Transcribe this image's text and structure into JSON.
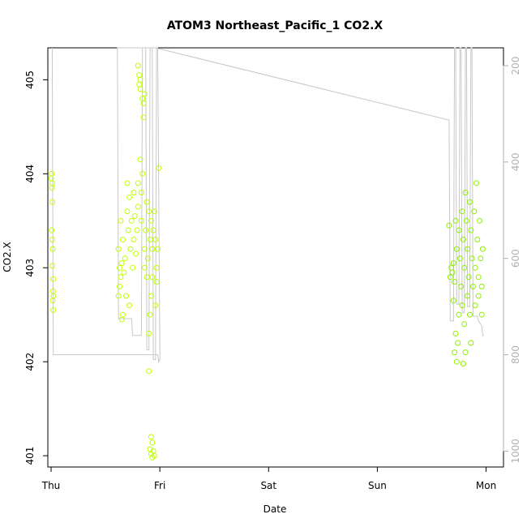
{
  "chart_data": {
    "type": "scatter",
    "title": "ATOM3 Northeast_Pacific_1 CO2.X",
    "xlabel": "Date",
    "ylabel": "CO2.X",
    "x_ticks": [
      "Thu",
      "Fri",
      "Sat",
      "Sun",
      "Mon"
    ],
    "y_ticks": [
      401,
      402,
      403,
      404,
      405
    ],
    "y2_ticks": [
      200,
      400,
      600,
      800,
      1000
    ],
    "xlim": [
      -0.03,
      4.16
    ],
    "ylim": [
      400.88,
      405.34
    ],
    "y2lim": [
      1033,
      163
    ],
    "grid": false,
    "legend": "none",
    "colors": {
      "points_early": "#bfff00",
      "points_late": "#8cf000",
      "profile_line": "#c8c8c8"
    },
    "profile_line": [
      [
        0.01,
        163
      ],
      [
        0.02,
        800
      ],
      [
        0.98,
        800
      ],
      [
        0.99,
        815
      ],
      [
        1.0,
        810
      ],
      [
        0.98,
        163
      ],
      [
        0.97,
        163
      ],
      [
        0.96,
        810
      ],
      [
        0.94,
        810
      ],
      [
        0.93,
        163
      ],
      [
        0.91,
        163
      ],
      [
        0.9,
        790
      ],
      [
        0.88,
        790
      ],
      [
        0.87,
        163
      ],
      [
        0.84,
        163
      ],
      [
        0.83,
        760
      ],
      [
        0.75,
        760
      ],
      [
        0.74,
        725
      ],
      [
        0.62,
        725
      ],
      [
        0.61,
        163
      ],
      [
        0.96,
        163
      ],
      [
        3.66,
        313
      ],
      [
        3.67,
        730
      ],
      [
        3.7,
        730
      ],
      [
        3.71,
        163
      ],
      [
        3.72,
        163
      ],
      [
        3.73,
        695
      ],
      [
        3.75,
        695
      ],
      [
        3.76,
        163
      ],
      [
        3.77,
        163
      ],
      [
        3.78,
        713
      ],
      [
        3.8,
        713
      ],
      [
        3.81,
        163
      ],
      [
        3.82,
        163
      ],
      [
        3.83,
        700
      ],
      [
        3.85,
        700
      ],
      [
        3.86,
        163
      ],
      [
        3.87,
        163
      ],
      [
        3.88,
        720
      ],
      [
        3.92,
        720
      ],
      [
        3.93,
        730
      ],
      [
        3.96,
        740
      ],
      [
        3.97,
        760
      ],
      [
        3.98,
        760
      ]
    ],
    "series": [
      {
        "points": [
          [
            0.0,
            403.95
          ],
          [
            0.005,
            404.0
          ],
          [
            0.01,
            403.9
          ],
          [
            0.008,
            403.85
          ],
          [
            0.012,
            403.7
          ],
          [
            0.004,
            403.4
          ],
          [
            0.01,
            403.3
          ],
          [
            0.015,
            403.2
          ],
          [
            0.012,
            403.02
          ],
          [
            0.02,
            402.88
          ],
          [
            0.018,
            402.75
          ],
          [
            0.022,
            402.7
          ],
          [
            0.015,
            402.65
          ],
          [
            0.02,
            402.55
          ],
          [
            0.62,
            403.2
          ],
          [
            0.63,
            403.0
          ],
          [
            0.64,
            402.9
          ],
          [
            0.62,
            402.7
          ],
          [
            0.63,
            402.8
          ],
          [
            0.65,
            402.45
          ],
          [
            0.66,
            402.5
          ],
          [
            0.64,
            403.5
          ],
          [
            0.66,
            403.3
          ],
          [
            0.68,
            403.1
          ],
          [
            0.65,
            403.05
          ],
          [
            0.67,
            402.95
          ],
          [
            0.69,
            402.7
          ],
          [
            0.7,
            403.6
          ],
          [
            0.71,
            403.4
          ],
          [
            0.72,
            403.75
          ],
          [
            0.7,
            403.9
          ],
          [
            0.73,
            403.2
          ],
          [
            0.74,
            403.5
          ],
          [
            0.75,
            403.0
          ],
          [
            0.72,
            402.6
          ],
          [
            0.76,
            403.3
          ],
          [
            0.77,
            403.55
          ],
          [
            0.78,
            403.15
          ],
          [
            0.76,
            403.8
          ],
          [
            0.79,
            403.4
          ],
          [
            0.8,
            403.65
          ],
          [
            0.8,
            405.15
          ],
          [
            0.81,
            405.05
          ],
          [
            0.81,
            404.95
          ],
          [
            0.82,
            405.0
          ],
          [
            0.82,
            404.9
          ],
          [
            0.8,
            403.9
          ],
          [
            0.83,
            403.8
          ],
          [
            0.84,
            404.0
          ],
          [
            0.82,
            404.15
          ],
          [
            0.85,
            404.6
          ],
          [
            0.84,
            404.8
          ],
          [
            0.86,
            404.85
          ],
          [
            0.85,
            404.75
          ],
          [
            0.83,
            403.5
          ],
          [
            0.86,
            403.2
          ],
          [
            0.87,
            403.4
          ],
          [
            0.88,
            403.7
          ],
          [
            0.86,
            403.0
          ],
          [
            0.88,
            402.9
          ],
          [
            0.89,
            403.1
          ],
          [
            0.9,
            403.6
          ],
          [
            0.9,
            402.3
          ],
          [
            0.91,
            403.3
          ],
          [
            0.92,
            403.5
          ],
          [
            0.93,
            403.2
          ],
          [
            0.9,
            401.9
          ],
          [
            0.91,
            402.5
          ],
          [
            0.92,
            402.7
          ],
          [
            0.93,
            402.9
          ],
          [
            0.94,
            403.4
          ],
          [
            0.95,
            403.6
          ],
          [
            0.96,
            403.3
          ],
          [
            0.97,
            403.0
          ],
          [
            0.96,
            402.6
          ],
          [
            0.98,
            403.2
          ],
          [
            0.99,
            404.06
          ],
          [
            0.97,
            402.85
          ],
          [
            0.92,
            401.2
          ],
          [
            0.93,
            401.14
          ],
          [
            0.91,
            401.07
          ],
          [
            0.94,
            401.05
          ],
          [
            0.92,
            401.02
          ],
          [
            0.95,
            401.0
          ],
          [
            0.93,
            400.98
          ]
        ]
      },
      {
        "points": [
          [
            3.66,
            403.45
          ],
          [
            3.68,
            403.0
          ],
          [
            3.69,
            402.95
          ],
          [
            3.7,
            403.05
          ],
          [
            3.67,
            402.9
          ],
          [
            3.71,
            402.85
          ],
          [
            3.7,
            402.65
          ],
          [
            3.72,
            403.5
          ],
          [
            3.73,
            403.2
          ],
          [
            3.72,
            402.3
          ],
          [
            3.74,
            402.2
          ],
          [
            3.71,
            402.1
          ],
          [
            3.73,
            402.0
          ],
          [
            3.75,
            403.4
          ],
          [
            3.76,
            403.1
          ],
          [
            3.77,
            402.8
          ],
          [
            3.75,
            402.5
          ],
          [
            3.78,
            403.6
          ],
          [
            3.79,
            403.3
          ],
          [
            3.78,
            402.6
          ],
          [
            3.8,
            403.0
          ],
          [
            3.81,
            403.8
          ],
          [
            3.82,
            403.5
          ],
          [
            3.8,
            402.4
          ],
          [
            3.81,
            402.1
          ],
          [
            3.79,
            401.98
          ],
          [
            3.83,
            403.2
          ],
          [
            3.84,
            402.9
          ],
          [
            3.85,
            403.7
          ],
          [
            3.83,
            402.7
          ],
          [
            3.86,
            403.4
          ],
          [
            3.85,
            402.5
          ],
          [
            3.87,
            403.1
          ],
          [
            3.88,
            402.8
          ],
          [
            3.86,
            402.2
          ],
          [
            3.89,
            403.6
          ],
          [
            3.9,
            403.0
          ],
          [
            3.91,
            403.9
          ],
          [
            3.9,
            402.6
          ],
          [
            3.92,
            403.3
          ],
          [
            3.93,
            402.9
          ],
          [
            3.94,
            403.5
          ],
          [
            3.95,
            403.1
          ],
          [
            3.93,
            402.7
          ],
          [
            3.96,
            402.8
          ],
          [
            3.97,
            403.2
          ],
          [
            3.96,
            402.5
          ]
        ]
      }
    ]
  }
}
